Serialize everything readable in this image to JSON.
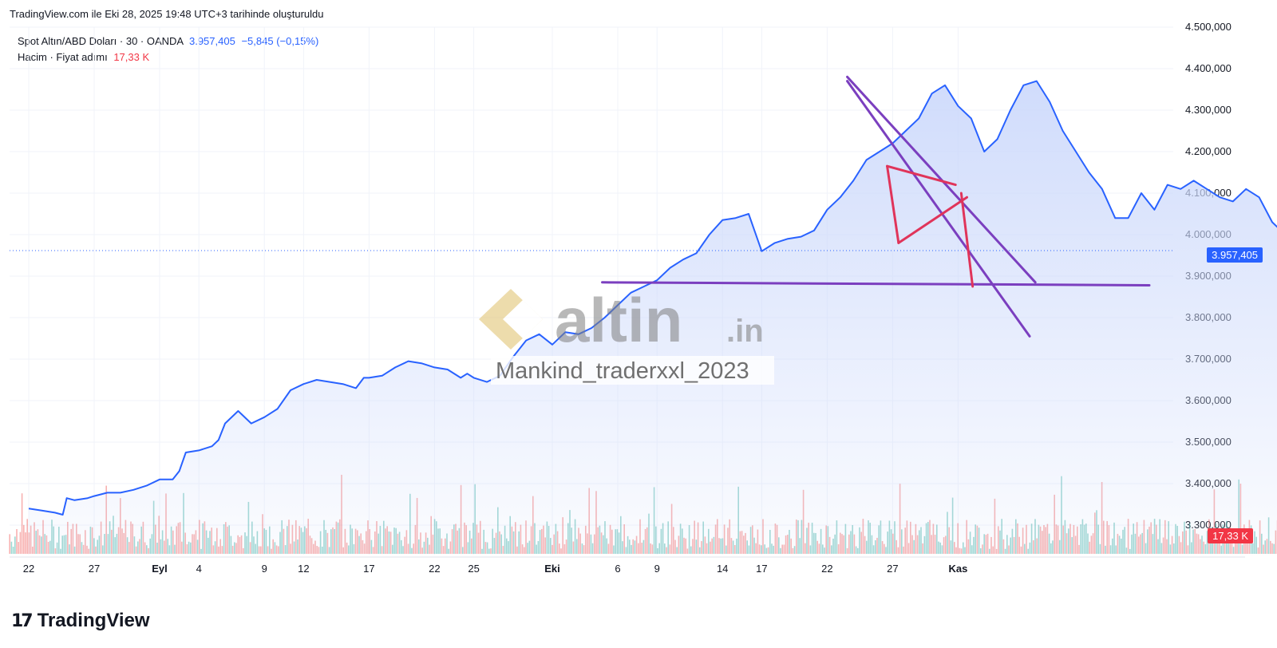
{
  "caption": "TradingView.com ile Eki 28, 2025 19:48 UTC+3 tarihinde oluşturuldu",
  "legend": {
    "symbol": "Spot Altın/ABD Doları · 30 · OANDA",
    "last": "3.957,405",
    "change": "−5,845 (−0,15%)",
    "volume_label": "Hacim · Fiyat adımı",
    "volume_value": "17,33 K"
  },
  "price_tag": "3.957,405",
  "volume_tag": "17,33 K",
  "watermark": {
    "brand": "altin",
    "suffix": ".in",
    "author": "Mankind_traderxxl_2023"
  },
  "footer": {
    "logo_mark": "17",
    "logo_word": "TradingView"
  },
  "colors": {
    "price_line": "#2962ff",
    "area_fill": "#cbd8fb",
    "vol_up": "#26a69a",
    "vol_down": "#ef5350",
    "trend_purple": "#7b3fbf",
    "pattern_red": "#e0345a"
  },
  "chart_data": {
    "type": "line",
    "title": "Spot Altın/ABD Doları · 30 · OANDA",
    "ylabel": "",
    "xlabel": "",
    "ylim": [
      3300,
      4500
    ],
    "y_ticks": [
      "4.500,000",
      "4.400,000",
      "4.300,000",
      "4.200,000",
      "4.100,000",
      "4.000,000",
      "3.900,000",
      "3.800,000",
      "3.700,000",
      "3.600,000",
      "3.500,000",
      "3.400,000",
      "3.300,000"
    ],
    "y_tick_values": [
      4500,
      4400,
      4300,
      4200,
      4100,
      4000,
      3900,
      3800,
      3700,
      3600,
      3500,
      3400,
      3300
    ],
    "x_ticks": [
      {
        "label": "22",
        "day": 0,
        "bold": false
      },
      {
        "label": "27",
        "day": 5,
        "bold": false
      },
      {
        "label": "Eyl",
        "day": 10,
        "bold": true
      },
      {
        "label": "4",
        "day": 13,
        "bold": false
      },
      {
        "label": "9",
        "day": 18,
        "bold": false
      },
      {
        "label": "12",
        "day": 21,
        "bold": false
      },
      {
        "label": "17",
        "day": 26,
        "bold": false
      },
      {
        "label": "22",
        "day": 31,
        "bold": false
      },
      {
        "label": "25",
        "day": 34,
        "bold": false
      },
      {
        "label": "Eki",
        "day": 40,
        "bold": true
      },
      {
        "label": "6",
        "day": 45,
        "bold": false
      },
      {
        "label": "9",
        "day": 48,
        "bold": false
      },
      {
        "label": "14",
        "day": 53,
        "bold": false
      },
      {
        "label": "17",
        "day": 56,
        "bold": false
      },
      {
        "label": "22",
        "day": 61,
        "bold": false
      },
      {
        "label": "27",
        "day": 66,
        "bold": false
      },
      {
        "label": "Kas",
        "day": 71,
        "bold": true
      }
    ],
    "x_unit": "days from Aug 22, 2025",
    "series": [
      {
        "points": [
          [
            0,
            3340
          ],
          [
            1,
            3335
          ],
          [
            2,
            3330
          ],
          [
            2.6,
            3325
          ],
          [
            2.9,
            3365
          ],
          [
            3.5,
            3360
          ],
          [
            4.5,
            3365
          ],
          [
            5,
            3370
          ],
          [
            6,
            3378
          ],
          [
            7,
            3378
          ],
          [
            8,
            3385
          ],
          [
            9,
            3395
          ],
          [
            10,
            3410
          ],
          [
            11,
            3410
          ],
          [
            11.5,
            3430
          ],
          [
            12,
            3475
          ],
          [
            13,
            3480
          ],
          [
            14,
            3490
          ],
          [
            14.5,
            3505
          ],
          [
            15,
            3545
          ],
          [
            16,
            3575
          ],
          [
            17,
            3545
          ],
          [
            18,
            3560
          ],
          [
            19,
            3580
          ],
          [
            20,
            3625
          ],
          [
            21,
            3640
          ],
          [
            22,
            3650
          ],
          [
            23,
            3645
          ],
          [
            24,
            3640
          ],
          [
            25,
            3630
          ],
          [
            25.6,
            3655
          ],
          [
            26,
            3655
          ],
          [
            27,
            3660
          ],
          [
            28,
            3680
          ],
          [
            29,
            3695
          ],
          [
            30,
            3690
          ],
          [
            31,
            3680
          ],
          [
            32,
            3675
          ],
          [
            33,
            3655
          ],
          [
            33.5,
            3665
          ],
          [
            34,
            3655
          ],
          [
            35,
            3645
          ],
          [
            36,
            3660
          ],
          [
            37,
            3705
          ],
          [
            38,
            3745
          ],
          [
            39,
            3760
          ],
          [
            40,
            3735
          ],
          [
            41,
            3765
          ],
          [
            42,
            3760
          ],
          [
            43,
            3775
          ],
          [
            44,
            3800
          ],
          [
            45,
            3830
          ],
          [
            46,
            3860
          ],
          [
            47,
            3875
          ],
          [
            48,
            3890
          ],
          [
            49,
            3920
          ],
          [
            50,
            3940
          ],
          [
            51,
            3955
          ],
          [
            52,
            4000
          ],
          [
            53,
            4035
          ],
          [
            54,
            4040
          ],
          [
            55,
            4050
          ],
          [
            55.5,
            4005
          ],
          [
            56,
            3960
          ],
          [
            57,
            3980
          ],
          [
            58,
            3990
          ],
          [
            59,
            3995
          ],
          [
            60,
            4010
          ],
          [
            61,
            4060
          ],
          [
            62,
            4090
          ],
          [
            63,
            4130
          ],
          [
            64,
            4180
          ],
          [
            65,
            4200
          ],
          [
            66,
            4220
          ],
          [
            67,
            4250
          ],
          [
            68,
            4280
          ],
          [
            69,
            4340
          ],
          [
            70,
            4360
          ],
          [
            71,
            4310
          ],
          [
            72,
            4280
          ],
          [
            73,
            4200
          ],
          [
            74,
            4230
          ],
          [
            75,
            4300
          ],
          [
            76,
            4360
          ],
          [
            77,
            4370
          ],
          [
            78,
            4320
          ],
          [
            79,
            4250
          ],
          [
            80,
            4200
          ],
          [
            81,
            4150
          ],
          [
            82,
            4110
          ],
          [
            83,
            4040
          ],
          [
            84,
            4040
          ],
          [
            85,
            4100
          ],
          [
            86,
            4060
          ],
          [
            87,
            4120
          ],
          [
            88,
            4110
          ],
          [
            89,
            4130
          ],
          [
            90,
            4110
          ],
          [
            91,
            4090
          ],
          [
            92,
            4080
          ],
          [
            93,
            4110
          ],
          [
            94,
            4090
          ],
          [
            95,
            4030
          ],
          [
            96,
            4000
          ],
          [
            97,
            3985
          ],
          [
            98,
            3960
          ],
          [
            99,
            3900
          ],
          [
            100,
            3885
          ],
          [
            101,
            3950
          ],
          [
            102,
            3957
          ]
        ]
      }
    ],
    "annotations": {
      "purple_lines": [
        {
          "from": [
            0.52,
            3885
          ],
          "to": [
            1.0,
            3878
          ],
          "note": "support"
        },
        {
          "from": [
            0.735,
            4380
          ],
          "to": [
            0.9,
            3885
          ],
          "note": "channel upper"
        },
        {
          "from": [
            0.735,
            4370
          ],
          "to": [
            0.895,
            3755
          ],
          "note": "channel lower"
        }
      ],
      "red_lines": [
        {
          "from": [
            0.77,
            4165
          ],
          "to": [
            0.78,
            3980
          ]
        },
        {
          "from": [
            0.78,
            3980
          ],
          "to": [
            0.84,
            4090
          ]
        },
        {
          "from": [
            0.77,
            4165
          ],
          "to": [
            0.83,
            4120
          ]
        },
        {
          "from": [
            0.835,
            4100
          ],
          "to": [
            0.845,
            3875
          ]
        }
      ]
    }
  }
}
